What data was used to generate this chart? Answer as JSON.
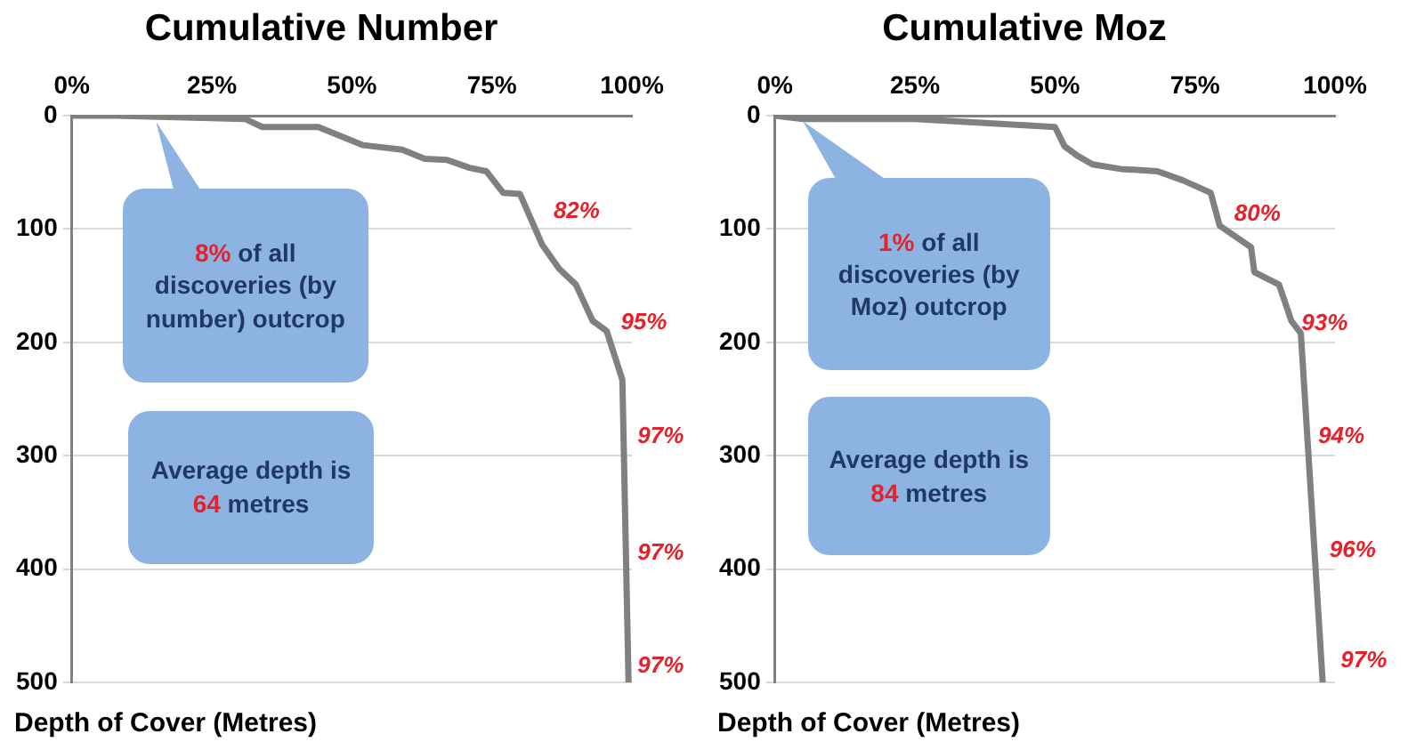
{
  "chart_data": [
    {
      "type": "line",
      "title": "Cumulative Number",
      "ylabel": "Depth of Cover (Metres)",
      "marker": "none",
      "grid": "y",
      "xlim": [
        0,
        100
      ],
      "xticks": [
        {
          "value": 0,
          "label": "0%"
        },
        {
          "value": 25,
          "label": "25%"
        },
        {
          "value": 50,
          "label": "50%"
        },
        {
          "value": 75,
          "label": "75%"
        },
        {
          "value": 100,
          "label": "100%"
        }
      ],
      "ylim": [
        500,
        0
      ],
      "yticks": [
        0,
        100,
        200,
        300,
        400,
        500
      ],
      "series": [
        {
          "color": "#808080",
          "x": [
            0,
            7.8,
            31,
            34,
            44,
            52,
            59,
            63,
            67,
            71,
            74,
            77,
            80,
            84,
            87,
            90,
            93,
            95.5,
            98.3,
            99.4
          ],
          "values": [
            0,
            0,
            3,
            10,
            10,
            26,
            30,
            38,
            39,
            46,
            49,
            68,
            69,
            114,
            135,
            149,
            181,
            190,
            233,
            500
          ]
        }
      ],
      "annotations": [
        "82%",
        "95%",
        "97%",
        "97%",
        "97%",
        "8% of all discoveries (by number) outcrop",
        "Average depth is 64 metres"
      ]
    },
    {
      "type": "line",
      "title": "Cumulative Moz",
      "ylabel": "Depth of Cover (Metres)",
      "marker": "none",
      "grid": "y",
      "xlim": [
        0,
        100
      ],
      "xticks": [
        {
          "value": 0,
          "label": "0%"
        },
        {
          "value": 25,
          "label": "25%"
        },
        {
          "value": 50,
          "label": "50%"
        },
        {
          "value": 75,
          "label": "75%"
        },
        {
          "value": 100,
          "label": "100%"
        }
      ],
      "ylim": [
        500,
        0
      ],
      "yticks": [
        0,
        100,
        200,
        300,
        400,
        500
      ],
      "series": [
        {
          "color": "#808080",
          "x": [
            0,
            5,
            25,
            50,
            51.7,
            53.9,
            56.7,
            61.7,
            68.3,
            72.8,
            77.8,
            79.4,
            85,
            85.6,
            90,
            92.2,
            93.9,
            97.8
          ],
          "values": [
            0,
            3,
            3,
            10,
            27,
            35,
            43,
            47,
            49,
            57,
            68,
            97,
            116,
            138,
            149,
            181,
            192,
            500
          ]
        }
      ],
      "annotations": [
        "80%",
        "93%",
        "94%",
        "96%",
        "97%",
        "1% of all discoveries (by Moz) outcrop",
        "Average depth is 84 metres"
      ]
    }
  ]
}
